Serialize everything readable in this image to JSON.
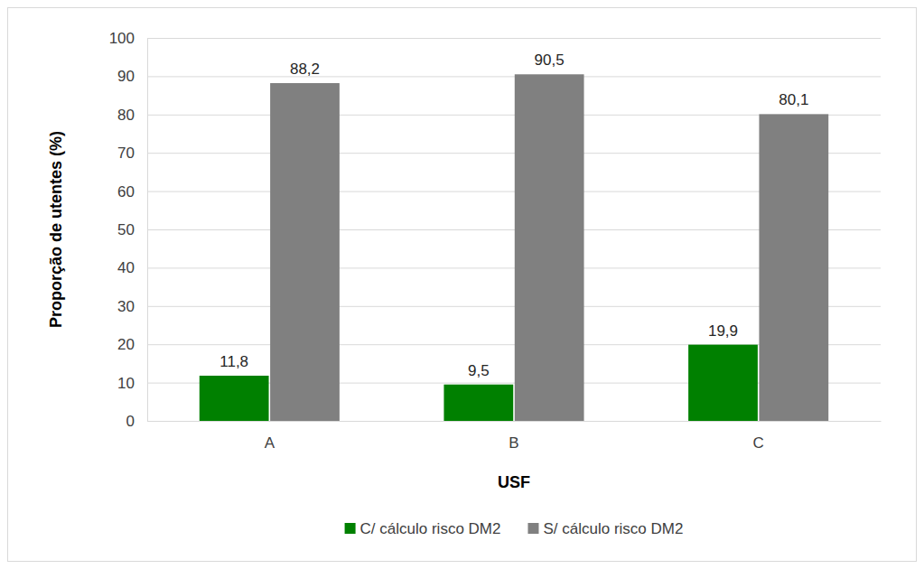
{
  "chart_data": {
    "type": "bar",
    "x_label": "USF",
    "y_label": "Proporção de utentes (%)",
    "categories": [
      "A",
      "B",
      "C"
    ],
    "series": [
      {
        "name": "C/ cálculo risco DM2",
        "color": "#008000",
        "values": [
          11.8,
          9.5,
          19.9
        ],
        "value_labels": [
          "11,8",
          "9,5",
          "19,9"
        ]
      },
      {
        "name": "S/ cálculo risco DM2",
        "color": "#808080",
        "values": [
          88.2,
          90.5,
          80.1
        ],
        "value_labels": [
          "88,2",
          "90,5",
          "80,1"
        ]
      }
    ],
    "ylim": [
      0,
      100
    ],
    "yticks": [
      0,
      10,
      20,
      30,
      40,
      50,
      60,
      70,
      80,
      90,
      100
    ],
    "grid": true,
    "legend": "bottom",
    "data_labels": true
  }
}
